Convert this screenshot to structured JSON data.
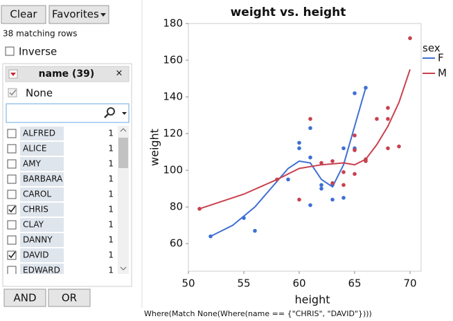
{
  "filter": {
    "clear": "Clear",
    "favorites": "Favorites",
    "matching": "38 matching rows",
    "inverse": "Inverse",
    "header": "name (39)",
    "none": "None",
    "names": [
      "ALFRED",
      "ALICE",
      "AMY",
      "BARBARA",
      "CAROL",
      "CHRIS",
      "CLAY",
      "DANNY",
      "DAVID",
      "EDWARD"
    ],
    "counts": [
      1,
      1,
      1,
      1,
      1,
      1,
      1,
      1,
      1,
      1
    ],
    "checked": [
      false,
      false,
      false,
      false,
      false,
      true,
      false,
      false,
      true,
      false
    ],
    "and": "AND",
    "or": "OR"
  },
  "where": "Where(Match None(Where(name == {\"CHRIS\", \"DAVID\"})))",
  "chart_data": {
    "type": "scatter",
    "title": "weight vs. height",
    "x_label": "height",
    "y_label": "weight",
    "legend_title": "sex",
    "xlim": [
      50,
      71
    ],
    "ylim": [
      45,
      180
    ],
    "xticks": [
      50,
      55,
      60,
      65,
      70
    ],
    "yticks": [
      60,
      80,
      100,
      120,
      140,
      160,
      180
    ],
    "series": [
      {
        "name": "F",
        "color": "#3f6fd4",
        "x": [
          52,
          55,
          56,
          59,
          60,
          60,
          61,
          61,
          61,
          62,
          62,
          63,
          63,
          64,
          64,
          65,
          65,
          65,
          66
        ],
        "values": [
          64,
          74,
          67,
          95,
          112,
          115,
          107,
          123,
          81,
          92,
          90,
          84,
          92,
          112,
          85,
          142,
          112,
          111,
          145
        ],
        "fit_x": [
          52,
          54,
          56,
          58,
          59,
          60,
          61,
          62,
          63,
          64,
          65,
          66
        ],
        "fit_values": [
          64,
          70,
          80,
          94,
          101,
          105,
          104,
          95,
          91,
          103,
          124,
          145
        ]
      },
      {
        "name": "M",
        "color": "#c8414e",
        "x": [
          51,
          58,
          60,
          61,
          62,
          63,
          63,
          64,
          64,
          65,
          65,
          65,
          66,
          66,
          67,
          68,
          68,
          68,
          69,
          70
        ],
        "values": [
          79,
          95,
          84,
          128,
          104,
          105,
          93,
          99,
          92,
          119,
          111,
          98,
          106,
          105,
          128,
          134,
          128,
          112,
          113,
          172
        ],
        "fit_x": [
          51,
          55,
          58,
          60,
          62,
          64,
          65,
          66,
          67,
          68,
          69,
          70
        ],
        "fit_values": [
          79,
          87,
          95,
          101,
          103,
          104,
          103,
          106,
          114,
          124,
          137,
          155
        ]
      }
    ]
  }
}
